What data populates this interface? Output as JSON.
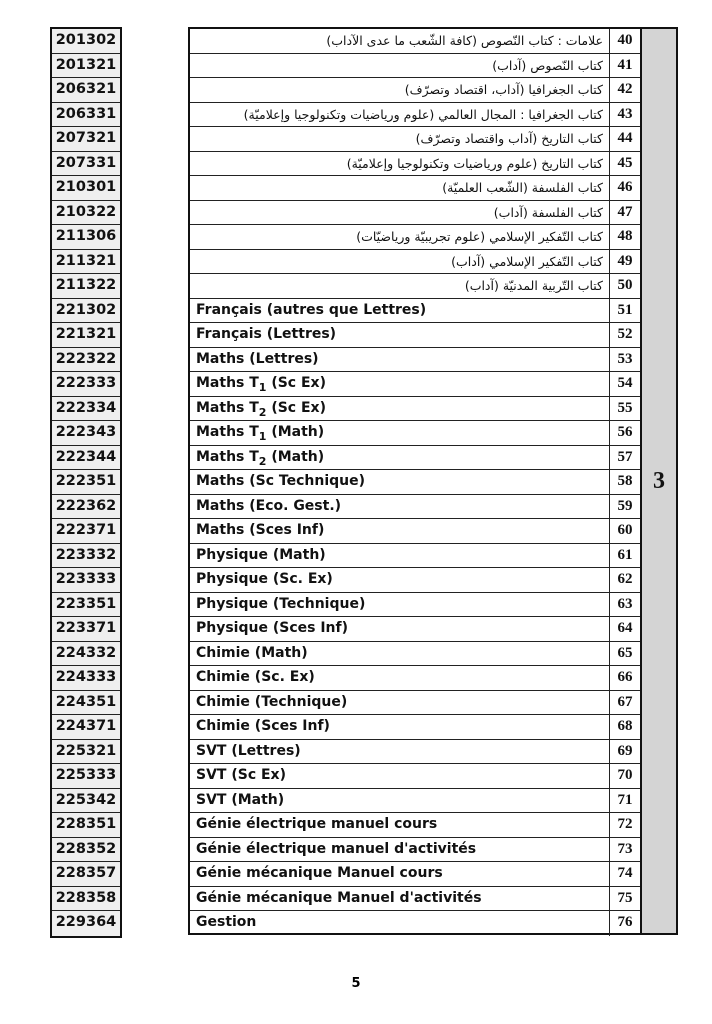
{
  "group_label": "3",
  "page_number": "5",
  "rows": [
    {
      "code": "201302",
      "num": "40",
      "title": "علامات : كتاب النّصوص (كافة الشّعب ما عدى الآداب)",
      "ar": true
    },
    {
      "code": "201321",
      "num": "41",
      "title": "كتاب النّصوص (آداب)",
      "ar": true
    },
    {
      "code": "206321",
      "num": "42",
      "title": "كتاب الجغرافيا (آداب، اقتصاد وتصرّف)",
      "ar": true
    },
    {
      "code": "206331",
      "num": "43",
      "title": "كتاب الجغرافيا : المجال العالمي (علوم ورياضيات وتكنولوجيا وإعلاميّة)",
      "ar": true
    },
    {
      "code": "207321",
      "num": "44",
      "title": "كتاب التاريخ (آداب واقتصاد وتصرّف)",
      "ar": true
    },
    {
      "code": "207331",
      "num": "45",
      "title": "كتاب التاريخ (علوم ورياضيات وتكنولوجيا وإعلاميّة)",
      "ar": true
    },
    {
      "code": "210301",
      "num": "46",
      "title": "كتاب الفلسفة (الشّعب العلميّة)",
      "ar": true
    },
    {
      "code": "210322",
      "num": "47",
      "title": "كتاب الفلسفة (آداب)",
      "ar": true
    },
    {
      "code": "211306",
      "num": "48",
      "title": "كتاب التّفكير الإسلامي (علوم تجريبيّة ورياضيّات)",
      "ar": true
    },
    {
      "code": "211321",
      "num": "49",
      "title": "كتاب التّفكير الإسلامي (آداب)",
      "ar": true
    },
    {
      "code": "211322",
      "num": "50",
      "title": "كتاب التّربية المدنيّة (آداب)",
      "ar": true
    },
    {
      "code": "221302",
      "num": "51",
      "title": "Français (autres que Lettres)"
    },
    {
      "code": "221321",
      "num": "52",
      "title": "Français (Lettres)"
    },
    {
      "code": "222322",
      "num": "53",
      "title": "Maths (Lettres)"
    },
    {
      "code": "222333",
      "num": "54",
      "title": "Maths T",
      "sub": "1",
      "rest": " (Sc Ex)"
    },
    {
      "code": "222334",
      "num": "55",
      "title": "Maths T",
      "sub": "2",
      "rest": " (Sc Ex)"
    },
    {
      "code": "222343",
      "num": "56",
      "title": "Maths T",
      "sub": "1",
      "rest": " (Math)"
    },
    {
      "code": "222344",
      "num": "57",
      "title": "Maths T",
      "sub": "2",
      "rest": " (Math)"
    },
    {
      "code": "222351",
      "num": "58",
      "title": "Maths (Sc Technique)"
    },
    {
      "code": "222362",
      "num": "59",
      "title": "Maths (Eco. Gest.)"
    },
    {
      "code": "222371",
      "num": "60",
      "title": "Maths (Sces Inf)"
    },
    {
      "code": "223332",
      "num": "61",
      "title": "Physique (Math)"
    },
    {
      "code": "223333",
      "num": "62",
      "title": "Physique (Sc. Ex)"
    },
    {
      "code": "223351",
      "num": "63",
      "title": "Physique (Technique)"
    },
    {
      "code": "223371",
      "num": "64",
      "title": "Physique (Sces Inf)"
    },
    {
      "code": "224332",
      "num": "65",
      "title": "Chimie (Math)"
    },
    {
      "code": "224333",
      "num": "66",
      "title": "Chimie (Sc. Ex)"
    },
    {
      "code": "224351",
      "num": "67",
      "title": "Chimie (Technique)"
    },
    {
      "code": "224371",
      "num": "68",
      "title": "Chimie (Sces Inf)"
    },
    {
      "code": "225321",
      "num": "69",
      "title": "SVT (Lettres)"
    },
    {
      "code": "225333",
      "num": "70",
      "title": "SVT (Sc Ex)"
    },
    {
      "code": "225342",
      "num": "71",
      "title": "SVT (Math)"
    },
    {
      "code": "228351",
      "num": "72",
      "title": "Génie électrique manuel cours"
    },
    {
      "code": "228352",
      "num": "73",
      "title": "Génie électrique manuel d'activités"
    },
    {
      "code": "228357",
      "num": "74",
      "title": "Génie mécanique Manuel cours"
    },
    {
      "code": "228358",
      "num": "75",
      "title": "Génie mécanique Manuel d'activités"
    },
    {
      "code": "229364",
      "num": "76",
      "title": "Gestion"
    }
  ]
}
